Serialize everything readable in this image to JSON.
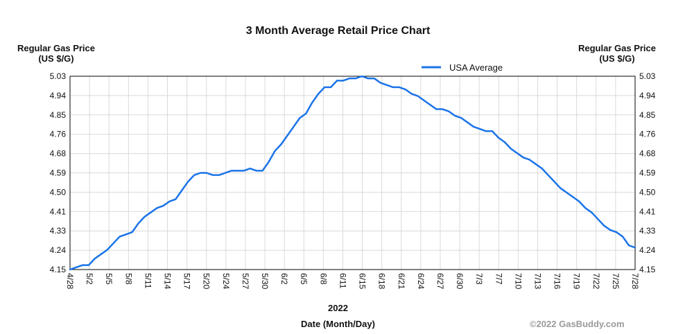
{
  "chart_data": {
    "type": "line",
    "title": "3 Month Average Retail Price Chart",
    "ylabel_left": "Regular Gas Price (US $/G)",
    "ylabel_right": "Regular Gas Price (US $/G)",
    "year_label": "2022",
    "xlabel": "Date (Month/Day)",
    "credit": "©2022 GasBuddy.com",
    "legend_position": "top-right",
    "grid": true,
    "colors": {
      "line": "#1a73e8",
      "grid": "#d9d9d9",
      "axis": "#000000"
    },
    "ylim": [
      4.15,
      5.03
    ],
    "y_ticks": [
      "5.03",
      "4.94",
      "4.85",
      "4.76",
      "4.68",
      "4.59",
      "4.50",
      "4.41",
      "4.33",
      "4.24",
      "4.15"
    ],
    "x_ticks": [
      "4/28",
      "5/2",
      "5/5",
      "5/8",
      "5/11",
      "5/14",
      "5/17",
      "5/20",
      "5/24",
      "5/27",
      "5/30",
      "6/2",
      "6/5",
      "6/8",
      "6/11",
      "6/15",
      "6/18",
      "6/21",
      "6/24",
      "6/27",
      "6/30",
      "7/3",
      "7/7",
      "7/10",
      "7/13",
      "7/16",
      "7/19",
      "7/22",
      "7/25",
      "7/28"
    ],
    "series": [
      {
        "name": "USA Average",
        "values": [
          4.15,
          4.16,
          4.17,
          4.17,
          4.2,
          4.22,
          4.24,
          4.27,
          4.3,
          4.31,
          4.32,
          4.36,
          4.39,
          4.41,
          4.43,
          4.44,
          4.46,
          4.47,
          4.51,
          4.55,
          4.58,
          4.59,
          4.59,
          4.58,
          4.58,
          4.59,
          4.6,
          4.6,
          4.6,
          4.61,
          4.6,
          4.6,
          4.64,
          4.69,
          4.72,
          4.76,
          4.8,
          4.84,
          4.86,
          4.91,
          4.95,
          4.98,
          4.98,
          5.01,
          5.01,
          5.02,
          5.02,
          5.03,
          5.02,
          5.02,
          5.0,
          4.99,
          4.98,
          4.98,
          4.97,
          4.95,
          4.94,
          4.92,
          4.9,
          4.88,
          4.88,
          4.87,
          4.85,
          4.84,
          4.82,
          4.8,
          4.79,
          4.78,
          4.78,
          4.75,
          4.73,
          4.7,
          4.68,
          4.66,
          4.65,
          4.63,
          4.61,
          4.58,
          4.55,
          4.52,
          4.5,
          4.48,
          4.46,
          4.43,
          4.41,
          4.38,
          4.35,
          4.33,
          4.32,
          4.3,
          4.26,
          4.25
        ]
      }
    ]
  }
}
